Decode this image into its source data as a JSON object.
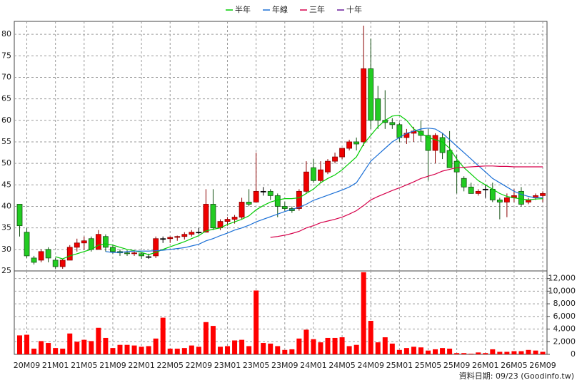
{
  "chart_data": {
    "type": "candlestick",
    "footer": "資料日期: 09/23 (Goodinfo.tw)",
    "categories": [
      null,
      "20M09",
      null,
      null,
      null,
      "21M01",
      null,
      null,
      null,
      "21M05",
      null,
      null,
      null,
      "21M09",
      null,
      null,
      null,
      "22M01",
      null,
      null,
      null,
      "22M05",
      null,
      null,
      null,
      "22M09",
      null,
      null,
      null,
      "23M01",
      null,
      null,
      null,
      "23M05",
      null,
      null,
      null,
      "23M09",
      null,
      null,
      null,
      "24M01",
      null,
      null,
      null,
      "24M05",
      null,
      null,
      null,
      "24M09",
      null,
      null,
      null,
      "25M01",
      null,
      null,
      null,
      "25M05",
      null,
      null,
      null,
      "25M09",
      null,
      null,
      null,
      "26M01",
      null,
      null,
      null,
      "26M05",
      null,
      null,
      null,
      "26M09"
    ],
    "open": [
      40.5,
      34,
      28,
      27.5,
      30,
      27.5,
      26,
      27.5,
      30.5,
      31.5,
      32.5,
      30,
      33,
      30.5,
      29.5,
      29.2,
      29,
      29,
      28.3,
      28.5,
      32.5,
      32.5,
      32.8,
      33,
      33.5,
      34,
      34,
      40.5,
      35,
      36.5,
      37,
      37.5,
      41,
      41,
      43.5,
      43.5,
      42.5,
      40,
      39.5,
      39.5,
      43.5,
      49,
      46,
      48,
      50.5,
      51.5,
      53.5,
      55,
      55,
      72,
      65,
      60,
      59.5,
      59,
      56,
      57,
      57.5,
      56.5,
      53,
      56,
      53,
      50.5,
      46.5,
      44.5,
      43,
      44,
      44,
      41.5,
      41,
      42,
      43.5,
      41,
      42,
      42.5
    ],
    "high": [
      40.5,
      35,
      28.5,
      30,
      30.5,
      28,
      27.8,
      31,
      32.5,
      33,
      33,
      34.5,
      33.5,
      31,
      30,
      29.8,
      29.5,
      29.3,
      29,
      33,
      33,
      33,
      33.2,
      34,
      34.5,
      35,
      44,
      44,
      37,
      37.5,
      38,
      42,
      44,
      52.5,
      44.5,
      44,
      43,
      41,
      40,
      44,
      50.5,
      51,
      50.5,
      51,
      52.5,
      53.5,
      55.5,
      56,
      82,
      79,
      68,
      67,
      60.5,
      59.5,
      58,
      58.5,
      60,
      58,
      57,
      57,
      57.5,
      52,
      47,
      45.5,
      44,
      45,
      45.5,
      42,
      43,
      44,
      44.5,
      42,
      43,
      43.5
    ],
    "low": [
      33,
      28,
      26.5,
      27,
      27,
      25.5,
      25.5,
      27.5,
      29.5,
      30,
      29.5,
      30,
      29.5,
      29,
      28.5,
      28.5,
      28.5,
      27.8,
      27.8,
      28,
      31.5,
      31.5,
      32,
      32.3,
      33,
      33.5,
      34,
      34.5,
      34.5,
      35.5,
      36,
      37,
      40,
      41,
      42.5,
      41.5,
      37.5,
      39,
      38.5,
      39,
      43,
      45.5,
      45.5,
      47.5,
      50,
      51,
      53,
      53,
      54,
      58,
      58,
      58,
      58,
      55,
      54.5,
      55,
      55,
      46,
      50,
      51,
      49,
      43,
      43.5,
      43,
      42.5,
      42,
      41,
      37,
      37.5,
      41,
      40,
      40.5,
      41.5,
      41
    ],
    "close": [
      35.5,
      28.5,
      27,
      29.5,
      28,
      26,
      27.5,
      30.5,
      31.5,
      32,
      30,
      33.5,
      30.5,
      29.5,
      29.2,
      29,
      29.2,
      28.5,
      28.3,
      32.5,
      32.5,
      32.8,
      33,
      33.5,
      34,
      34,
      40.5,
      35,
      36.5,
      37,
      37.5,
      41,
      40.5,
      43.5,
      43.5,
      42.5,
      40,
      39.5,
      39,
      43.5,
      48,
      46,
      48.5,
      50.5,
      51.5,
      53.5,
      55,
      54.5,
      72,
      60,
      60,
      59.5,
      59,
      56,
      57,
      57.5,
      56.5,
      53,
      56.5,
      52.5,
      49,
      48,
      44.5,
      43,
      43.5,
      44,
      41.5,
      41,
      42,
      42.5,
      40.5,
      41.5,
      42.5,
      43
    ],
    "volume": [
      3000,
      3100,
      900,
      2100,
      1800,
      1000,
      900,
      3300,
      2000,
      2300,
      2100,
      4200,
      2600,
      1000,
      1500,
      1500,
      1400,
      1200,
      1300,
      2500,
      5800,
      900,
      900,
      1000,
      1400,
      1200,
      5100,
      4500,
      1200,
      1300,
      2200,
      2300,
      1300,
      10100,
      1800,
      1700,
      1300,
      700,
      800,
      2500,
      3900,
      2400,
      1900,
      2600,
      2600,
      2700,
      1300,
      1500,
      13000,
      5300,
      1900,
      2700,
      1700,
      700,
      1000,
      1200,
      1100,
      600,
      800,
      1000,
      900,
      200,
      200,
      100,
      300,
      200,
      800,
      400,
      400,
      500,
      500,
      700,
      600,
      400
    ],
    "up_color": "#ee0000",
    "down_color": "#22cc22",
    "volume_color": "#ff0000",
    "series": [
      {
        "name": "半年",
        "color": "#00cc00",
        "values": [
          null,
          null,
          null,
          null,
          null,
          28.3,
          27.8,
          28.5,
          29,
          29.5,
          30,
          31,
          31.3,
          31,
          30.5,
          30,
          29.7,
          29.3,
          28.8,
          29.3,
          30,
          30.6,
          31.2,
          31.8,
          32.5,
          33.2,
          34.3,
          34.7,
          35,
          35.8,
          36.4,
          37,
          37.8,
          39.2,
          40.2,
          41,
          41.5,
          41.8,
          41.8,
          42,
          43,
          44,
          45.5,
          46.5,
          47.3,
          48.5,
          50,
          51.5,
          54.5,
          56.5,
          58.5,
          60,
          61,
          61.2,
          60,
          58,
          57,
          56,
          55.5,
          55,
          53.5,
          51,
          49,
          47.5,
          46,
          45,
          44,
          43,
          42.3,
          42,
          41.7,
          41.5,
          41.7,
          41.8
        ]
      },
      {
        "name": "年線",
        "color": "#1a6fd6",
        "values": [
          null,
          null,
          null,
          null,
          null,
          null,
          null,
          null,
          null,
          null,
          null,
          null,
          29.5,
          29.3,
          29.3,
          29.5,
          29.6,
          29.6,
          29.6,
          29.7,
          29.8,
          30,
          30.2,
          30.4,
          30.8,
          31.2,
          32,
          32.5,
          33.2,
          33.8,
          34.5,
          35,
          35.6,
          36.4,
          37,
          37.6,
          38.2,
          38.8,
          39.3,
          39.8,
          40.5,
          41.4,
          42,
          42.6,
          43.2,
          43.8,
          44.5,
          45.5,
          48,
          50.5,
          52,
          53.5,
          55,
          56,
          57,
          57.5,
          58,
          58.2,
          58,
          57,
          55.5,
          54,
          52.5,
          51,
          49.5,
          48,
          46.5,
          45.5,
          44.5,
          43.5,
          42.8,
          42.3,
          42,
          42
        ]
      },
      {
        "name": "三年",
        "color": "#d6004a",
        "values": [
          null,
          null,
          null,
          null,
          null,
          null,
          null,
          null,
          null,
          null,
          null,
          null,
          null,
          null,
          null,
          null,
          null,
          null,
          null,
          null,
          null,
          null,
          null,
          null,
          null,
          null,
          null,
          null,
          null,
          null,
          null,
          null,
          null,
          null,
          null,
          32.8,
          33,
          33.3,
          33.7,
          34.2,
          35,
          35.5,
          36.2,
          36.6,
          37,
          37.5,
          38.2,
          39,
          40.2,
          41.5,
          42.3,
          43,
          43.7,
          44.3,
          45,
          45.7,
          46.5,
          47,
          47.5,
          48.2,
          48.6,
          49,
          49.1,
          49.2,
          49.3,
          49.4,
          49.4,
          49.3,
          49.3,
          49.2,
          49.2,
          49.2,
          49.2,
          49.2
        ]
      },
      {
        "name": "十年",
        "color": "#6a1a9a",
        "values": [
          null,
          null,
          null,
          null,
          null,
          null,
          null,
          null,
          null,
          null,
          null,
          null,
          null,
          null,
          null,
          null,
          null,
          null,
          null,
          null,
          null,
          null,
          null,
          null,
          null,
          null,
          null,
          null,
          null,
          null,
          null,
          null,
          null,
          null,
          null,
          null,
          null,
          null,
          null,
          null,
          null,
          null,
          null,
          null,
          null,
          null,
          null,
          null,
          null,
          null,
          null,
          null,
          null,
          null,
          null,
          null,
          null,
          null,
          null,
          null,
          null,
          null,
          null,
          null,
          null,
          null,
          null,
          null,
          null,
          null,
          null,
          null,
          null,
          null
        ]
      }
    ],
    "ylim": [
      25,
      83
    ],
    "yticks": [
      25,
      30,
      35,
      40,
      45,
      50,
      55,
      60,
      65,
      70,
      75,
      80
    ],
    "y2lim": [
      0,
      13200
    ],
    "y2ticks": [
      0,
      {
        "value": 2000,
        "label": "2,000"
      },
      {
        "value": 4000,
        "label": "4,000"
      },
      {
        "value": 6000,
        "label": "6,000"
      },
      {
        "value": 8000,
        "label": "8,000"
      },
      {
        "value": 10000,
        "label": "10,000"
      },
      {
        "value": 12000,
        "label": "12,000"
      }
    ],
    "grid": true
  }
}
